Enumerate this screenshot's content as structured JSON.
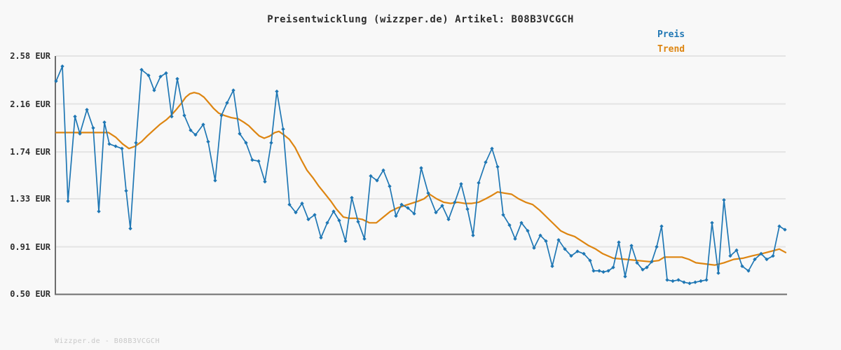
{
  "title": "Preisentwicklung (wizzper.de) Artikel: B08B3VCGCH",
  "legend": {
    "preis_label": "Preis",
    "trend_label": "Trend"
  },
  "footer": "Wizzper.de - B08B3VCGCH",
  "colors": {
    "preis": "#1f77b4",
    "trend": "#dd8511",
    "axis": "#6e6e6e",
    "grid": "#e4e4e4",
    "background": "#f8f8f8",
    "title_text": "#2e2e2e",
    "tick_text": "#2e2e2e",
    "footer_text": "#c8c8c8"
  },
  "y_axis": {
    "unit": "EUR",
    "min": 0.5,
    "max": 2.58,
    "ticks": [
      {
        "label": "2.58 EUR",
        "value": 2.58
      },
      {
        "label": "2.16 EUR",
        "value": 2.16
      },
      {
        "label": "1.74 EUR",
        "value": 1.74
      },
      {
        "label": "1.33 EUR",
        "value": 1.33
      },
      {
        "label": "0.91 EUR",
        "value": 0.91
      },
      {
        "label": "0.50 EUR",
        "value": 0.5
      }
    ]
  },
  "x_axis": {
    "ticks": [],
    "note_visible_labels": "none"
  },
  "chart_data": {
    "type": "line",
    "title": "Preisentwicklung (wizzper.de) Artikel: B08B3VCGCH",
    "xlabel": "",
    "ylabel": "EUR",
    "ylim": [
      0.5,
      2.58
    ],
    "grid": true,
    "legend_position": "top-right",
    "series": [
      {
        "name": "Preis",
        "color": "#1f77b4",
        "markers": true,
        "points": [
          [
            0,
            2.36
          ],
          [
            9,
            2.49
          ],
          [
            17,
            1.31
          ],
          [
            27,
            2.05
          ],
          [
            34,
            1.9
          ],
          [
            44,
            2.11
          ],
          [
            53,
            1.95
          ],
          [
            61,
            1.22
          ],
          [
            69,
            2.0
          ],
          [
            76,
            1.81
          ],
          [
            85,
            1.79
          ],
          [
            94,
            1.77
          ],
          [
            100,
            1.4
          ],
          [
            106,
            1.07
          ],
          [
            114,
            1.82
          ],
          [
            122,
            2.46
          ],
          [
            132,
            2.41
          ],
          [
            140,
            2.28
          ],
          [
            149,
            2.4
          ],
          [
            157,
            2.43
          ],
          [
            165,
            2.05
          ],
          [
            173,
            2.38
          ],
          [
            183,
            2.06
          ],
          [
            192,
            1.93
          ],
          [
            199,
            1.89
          ],
          [
            210,
            1.98
          ],
          [
            217,
            1.83
          ],
          [
            227,
            1.49
          ],
          [
            236,
            2.06
          ],
          [
            244,
            2.17
          ],
          [
            253,
            2.28
          ],
          [
            262,
            1.9
          ],
          [
            271,
            1.82
          ],
          [
            280,
            1.67
          ],
          [
            289,
            1.66
          ],
          [
            298,
            1.48
          ],
          [
            307,
            1.82
          ],
          [
            315,
            2.27
          ],
          [
            324,
            1.94
          ],
          [
            333,
            1.28
          ],
          [
            342,
            1.21
          ],
          [
            351,
            1.29
          ],
          [
            360,
            1.15
          ],
          [
            369,
            1.19
          ],
          [
            378,
            0.99
          ],
          [
            387,
            1.12
          ],
          [
            396,
            1.22
          ],
          [
            404,
            1.14
          ],
          [
            413,
            0.96
          ],
          [
            422,
            1.34
          ],
          [
            431,
            1.13
          ],
          [
            440,
            0.98
          ],
          [
            449,
            1.53
          ],
          [
            458,
            1.49
          ],
          [
            467,
            1.58
          ],
          [
            476,
            1.44
          ],
          [
            485,
            1.18
          ],
          [
            493,
            1.28
          ],
          [
            502,
            1.25
          ],
          [
            511,
            1.2
          ],
          [
            521,
            1.6
          ],
          [
            531,
            1.38
          ],
          [
            542,
            1.21
          ],
          [
            551,
            1.27
          ],
          [
            560,
            1.15
          ],
          [
            569,
            1.3
          ],
          [
            578,
            1.46
          ],
          [
            587,
            1.24
          ],
          [
            595,
            1.01
          ],
          [
            603,
            1.47
          ],
          [
            613,
            1.65
          ],
          [
            622,
            1.77
          ],
          [
            630,
            1.61
          ],
          [
            638,
            1.19
          ],
          [
            647,
            1.1
          ],
          [
            655,
            0.98
          ],
          [
            664,
            1.12
          ],
          [
            673,
            1.05
          ],
          [
            682,
            0.9
          ],
          [
            691,
            1.01
          ],
          [
            699,
            0.96
          ],
          [
            708,
            0.74
          ],
          [
            717,
            0.97
          ],
          [
            726,
            0.89
          ],
          [
            735,
            0.83
          ],
          [
            744,
            0.87
          ],
          [
            753,
            0.85
          ],
          [
            762,
            0.79
          ],
          [
            767,
            0.7
          ],
          [
            775,
            0.7
          ],
          [
            781,
            0.69
          ],
          [
            788,
            0.7
          ],
          [
            795,
            0.73
          ],
          [
            803,
            0.95
          ],
          [
            812,
            0.65
          ],
          [
            821,
            0.92
          ],
          [
            829,
            0.77
          ],
          [
            837,
            0.71
          ],
          [
            843,
            0.73
          ],
          [
            850,
            0.78
          ],
          [
            857,
            0.91
          ],
          [
            864,
            1.09
          ],
          [
            872,
            0.62
          ],
          [
            880,
            0.61
          ],
          [
            888,
            0.62
          ],
          [
            896,
            0.6
          ],
          [
            904,
            0.59
          ],
          [
            912,
            0.6
          ],
          [
            920,
            0.61
          ],
          [
            928,
            0.62
          ],
          [
            936,
            1.12
          ],
          [
            945,
            0.68
          ],
          [
            953,
            1.32
          ],
          [
            962,
            0.83
          ],
          [
            971,
            0.88
          ],
          [
            979,
            0.74
          ],
          [
            988,
            0.7
          ],
          [
            997,
            0.8
          ],
          [
            1006,
            0.85
          ],
          [
            1014,
            0.8
          ],
          [
            1023,
            0.83
          ],
          [
            1032,
            1.09
          ],
          [
            1040,
            1.06
          ]
        ]
      },
      {
        "name": "Trend",
        "color": "#dd8511",
        "markers": false,
        "points": [
          [
            0,
            1.91
          ],
          [
            25,
            1.91
          ],
          [
            50,
            1.91
          ],
          [
            75,
            1.91
          ],
          [
            85,
            1.87
          ],
          [
            95,
            1.81
          ],
          [
            104,
            1.77
          ],
          [
            113,
            1.79
          ],
          [
            122,
            1.83
          ],
          [
            130,
            1.88
          ],
          [
            139,
            1.93
          ],
          [
            148,
            1.98
          ],
          [
            157,
            2.02
          ],
          [
            164,
            2.06
          ],
          [
            170,
            2.1
          ],
          [
            178,
            2.16
          ],
          [
            185,
            2.22
          ],
          [
            191,
            2.25
          ],
          [
            197,
            2.26
          ],
          [
            204,
            2.25
          ],
          [
            211,
            2.22
          ],
          [
            218,
            2.17
          ],
          [
            225,
            2.12
          ],
          [
            232,
            2.08
          ],
          [
            240,
            2.06
          ],
          [
            250,
            2.04
          ],
          [
            260,
            2.03
          ],
          [
            268,
            2.0
          ],
          [
            275,
            1.97
          ],
          [
            283,
            1.92
          ],
          [
            290,
            1.88
          ],
          [
            297,
            1.86
          ],
          [
            305,
            1.88
          ],
          [
            312,
            1.91
          ],
          [
            318,
            1.92
          ],
          [
            325,
            1.89
          ],
          [
            333,
            1.85
          ],
          [
            341,
            1.78
          ],
          [
            350,
            1.67
          ],
          [
            358,
            1.58
          ],
          [
            367,
            1.51
          ],
          [
            375,
            1.44
          ],
          [
            383,
            1.38
          ],
          [
            392,
            1.31
          ],
          [
            400,
            1.24
          ],
          [
            410,
            1.17
          ],
          [
            418,
            1.16
          ],
          [
            428,
            1.16
          ],
          [
            437,
            1.15
          ],
          [
            447,
            1.12
          ],
          [
            457,
            1.12
          ],
          [
            467,
            1.17
          ],
          [
            477,
            1.22
          ],
          [
            487,
            1.25
          ],
          [
            497,
            1.27
          ],
          [
            507,
            1.29
          ],
          [
            517,
            1.31
          ],
          [
            525,
            1.33
          ],
          [
            533,
            1.37
          ],
          [
            543,
            1.33
          ],
          [
            553,
            1.3
          ],
          [
            563,
            1.29
          ],
          [
            573,
            1.3
          ],
          [
            583,
            1.29
          ],
          [
            593,
            1.29
          ],
          [
            603,
            1.3
          ],
          [
            613,
            1.33
          ],
          [
            622,
            1.36
          ],
          [
            630,
            1.39
          ],
          [
            640,
            1.38
          ],
          [
            650,
            1.37
          ],
          [
            660,
            1.33
          ],
          [
            670,
            1.3
          ],
          [
            680,
            1.28
          ],
          [
            690,
            1.23
          ],
          [
            700,
            1.17
          ],
          [
            710,
            1.11
          ],
          [
            720,
            1.05
          ],
          [
            730,
            1.02
          ],
          [
            740,
            1.0
          ],
          [
            750,
            0.96
          ],
          [
            760,
            0.92
          ],
          [
            770,
            0.89
          ],
          [
            780,
            0.85
          ],
          [
            795,
            0.81
          ],
          [
            813,
            0.8
          ],
          [
            830,
            0.79
          ],
          [
            847,
            0.78
          ],
          [
            860,
            0.79
          ],
          [
            868,
            0.82
          ],
          [
            880,
            0.82
          ],
          [
            893,
            0.82
          ],
          [
            903,
            0.8
          ],
          [
            913,
            0.77
          ],
          [
            927,
            0.76
          ],
          [
            940,
            0.75
          ],
          [
            953,
            0.77
          ],
          [
            967,
            0.8
          ],
          [
            980,
            0.81
          ],
          [
            993,
            0.83
          ],
          [
            1007,
            0.85
          ],
          [
            1020,
            0.87
          ],
          [
            1032,
            0.89
          ],
          [
            1041,
            0.86
          ]
        ]
      }
    ]
  }
}
